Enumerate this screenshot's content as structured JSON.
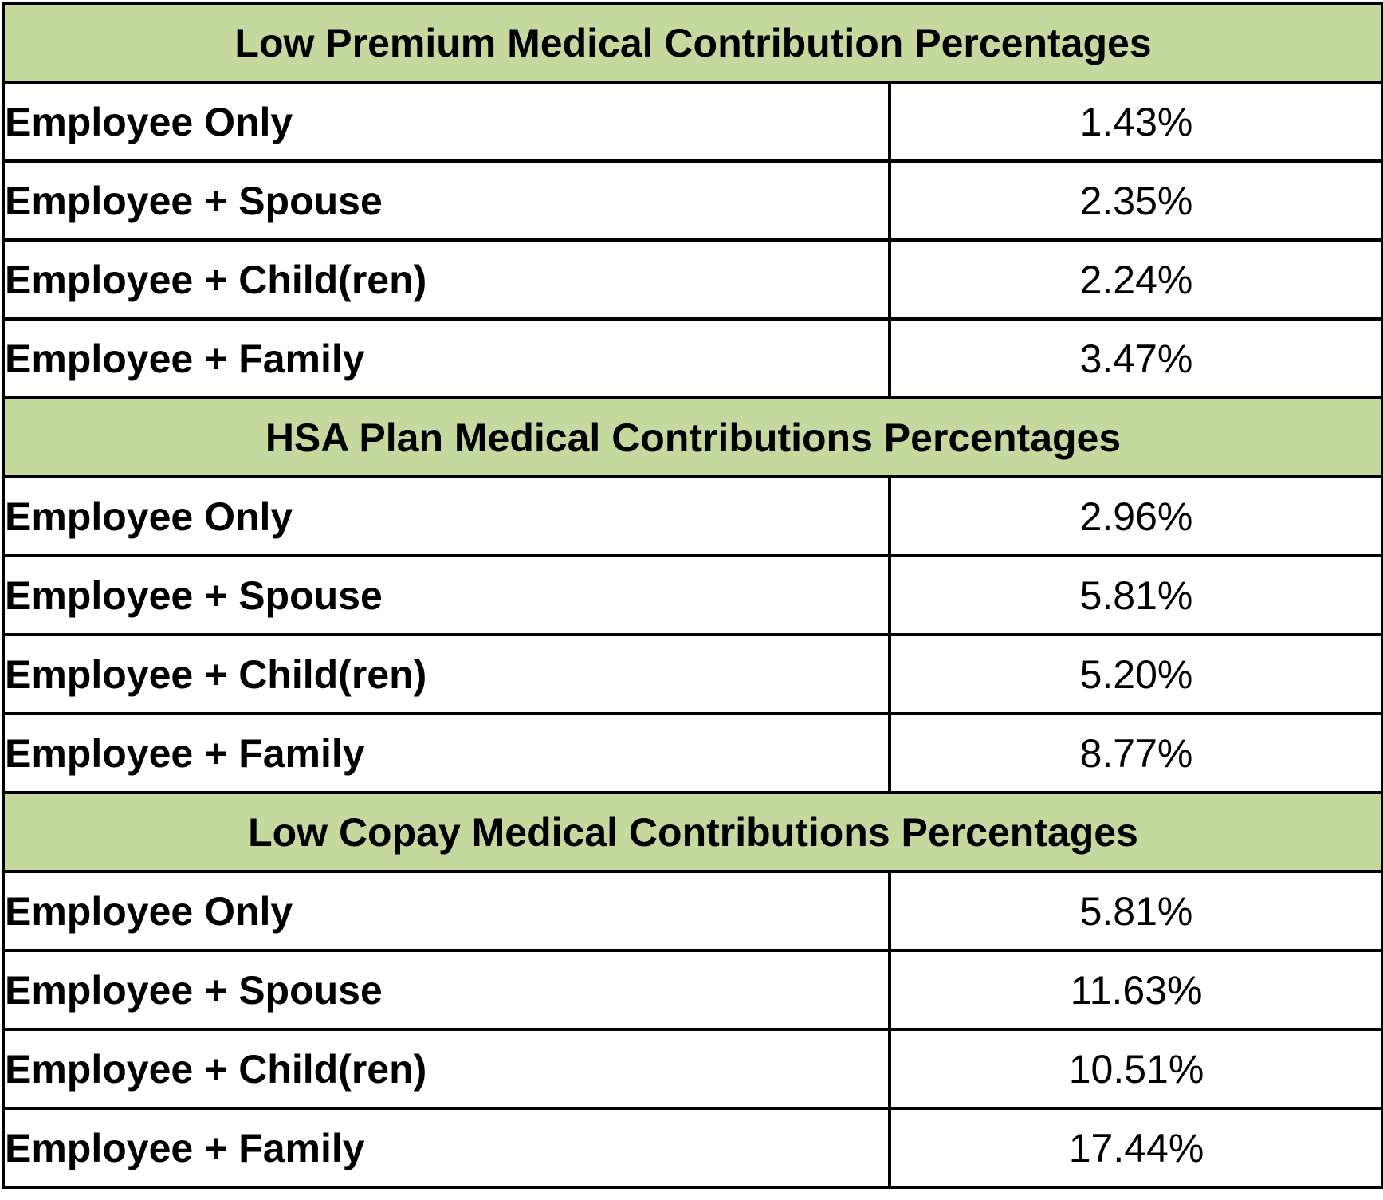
{
  "sections": [
    {
      "title": "Low Premium Medical Contribution Percentages",
      "rows": [
        {
          "tier": "Employee Only",
          "value": "1.43%"
        },
        {
          "tier": "Employee + Spouse",
          "value": "2.35%"
        },
        {
          "tier": "Employee + Child(ren)",
          "value": "2.24%"
        },
        {
          "tier": "Employee + Family",
          "value": "3.47%"
        }
      ]
    },
    {
      "title": "HSA Plan Medical Contributions Percentages",
      "rows": [
        {
          "tier": "Employee Only",
          "value": "2.96%"
        },
        {
          "tier": "Employee + Spouse",
          "value": "5.81%"
        },
        {
          "tier": "Employee + Child(ren)",
          "value": "5.20%"
        },
        {
          "tier": "Employee + Family",
          "value": "8.77%"
        }
      ]
    },
    {
      "title": "Low Copay Medical Contributions Percentages",
      "rows": [
        {
          "tier": "Employee Only",
          "value": "5.81%"
        },
        {
          "tier": "Employee + Spouse",
          "value": "11.63%"
        },
        {
          "tier": "Employee + Child(ren)",
          "value": "10.51%"
        },
        {
          "tier": "Employee + Family",
          "value": "17.44%"
        }
      ]
    }
  ],
  "colors": {
    "header_background": "#c5d89e",
    "border": "#000000",
    "text": "#000000"
  }
}
